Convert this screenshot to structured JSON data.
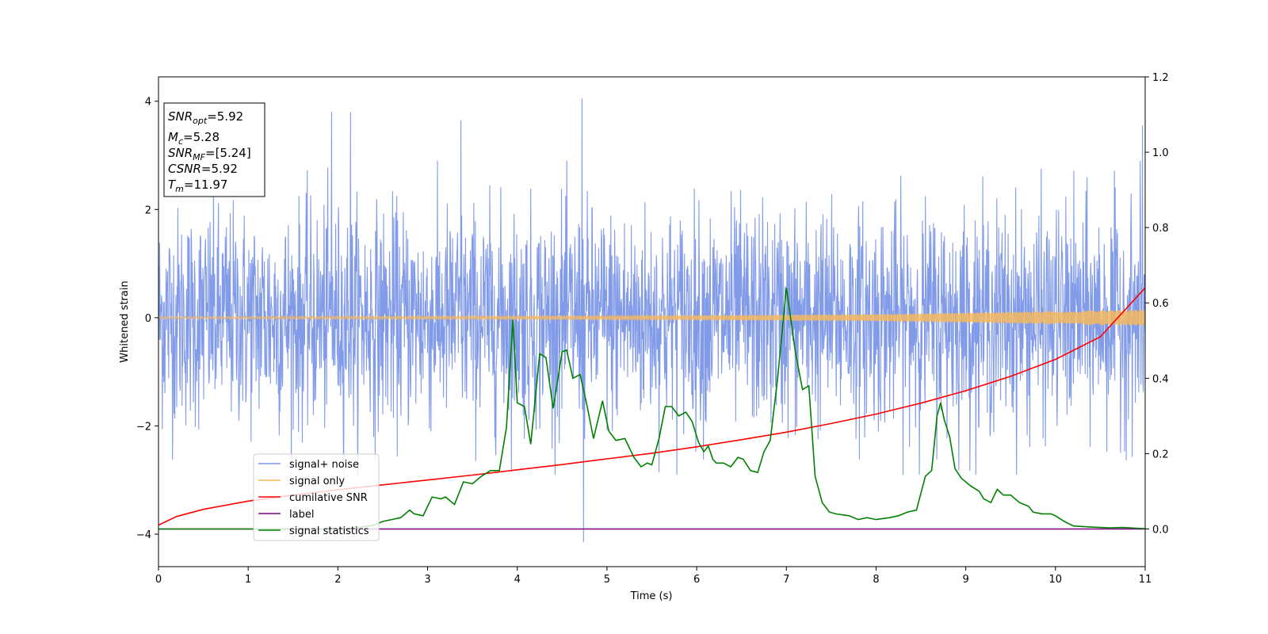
{
  "chart_data": {
    "type": "line",
    "xlabel": "Time (s)",
    "ylabel": "Whitened strain",
    "xlim": [
      0,
      11
    ],
    "ylim": [
      -4.6,
      4.45
    ],
    "y2lim": [
      -0.1,
      1.2
    ],
    "x_ticks": [
      "0",
      "1",
      "2",
      "3",
      "4",
      "5",
      "6",
      "7",
      "8",
      "9",
      "10",
      "11"
    ],
    "y_ticks": [
      "−4",
      "−2",
      "0",
      "2",
      "4"
    ],
    "y2_ticks": [
      "0.0",
      "0.2",
      "0.4",
      "0.6",
      "0.8",
      "1.0",
      "1.2"
    ],
    "annotation": {
      "snr_opt": "5.92",
      "mc": "5.28",
      "snr_mf": "[5.24]",
      "csnr": "5.92",
      "tm": "11.97"
    },
    "legend": {
      "position": "lower left",
      "entries": [
        "signal+ noise",
        "signal only",
        "cumilative SNR",
        "label",
        "signal statistics"
      ]
    },
    "series": [
      {
        "name": "signal+ noise",
        "color": "#7b96e8",
        "axis": "left",
        "style": "noise band approx. −2 to 2 with spikes up to ±4",
        "peaks": [
          {
            "x": 1.93,
            "y": 3.8
          },
          {
            "x": 2.14,
            "y": 3.8
          },
          {
            "x": 3.37,
            "y": 3.65
          },
          {
            "x": 4.72,
            "y": 4.05
          },
          {
            "x": 4.74,
            "y": -4.15
          },
          {
            "x": 10.97,
            "y": 3.55
          }
        ]
      },
      {
        "name": "signal only",
        "color": "#f5b95e",
        "axis": "left",
        "style": "chirp, amplitude growing from ~0.02 to ~0.15",
        "amplitude": [
          {
            "x": 0,
            "y": 0.02
          },
          {
            "x": 5,
            "y": 0.03
          },
          {
            "x": 8,
            "y": 0.06
          },
          {
            "x": 11,
            "y": 0.15
          }
        ]
      },
      {
        "name": "cumilative SNR",
        "color": "#ff0000",
        "axis": "right",
        "points": [
          [
            0,
            0.01
          ],
          [
            0.2,
            0.033
          ],
          [
            0.5,
            0.052
          ],
          [
            1,
            0.074
          ],
          [
            1.5,
            0.09
          ],
          [
            2,
            0.104
          ],
          [
            2.5,
            0.117
          ],
          [
            3,
            0.13
          ],
          [
            3.5,
            0.143
          ],
          [
            4,
            0.157
          ],
          [
            4.5,
            0.171
          ],
          [
            5,
            0.186
          ],
          [
            5.5,
            0.201
          ],
          [
            6,
            0.218
          ],
          [
            6.5,
            0.237
          ],
          [
            7,
            0.257
          ],
          [
            7.5,
            0.28
          ],
          [
            8,
            0.305
          ],
          [
            8.5,
            0.334
          ],
          [
            9,
            0.367
          ],
          [
            9.5,
            0.405
          ],
          [
            10,
            0.45
          ],
          [
            10.5,
            0.51
          ],
          [
            11,
            0.64
          ]
        ]
      },
      {
        "name": "label",
        "color": "#800080",
        "axis": "right",
        "points": [
          [
            0,
            0.0
          ],
          [
            11,
            0.0
          ]
        ]
      },
      {
        "name": "signal statistics",
        "color": "#008000",
        "axis": "right",
        "points": [
          [
            0,
            0.0
          ],
          [
            1.8,
            0.0
          ],
          [
            2.2,
            0.002
          ],
          [
            2.4,
            0.01
          ],
          [
            2.5,
            0.02
          ],
          [
            2.6,
            0.025
          ],
          [
            2.7,
            0.03
          ],
          [
            2.8,
            0.05
          ],
          [
            2.85,
            0.04
          ],
          [
            2.95,
            0.035
          ],
          [
            3.05,
            0.085
          ],
          [
            3.15,
            0.08
          ],
          [
            3.2,
            0.085
          ],
          [
            3.3,
            0.065
          ],
          [
            3.4,
            0.125
          ],
          [
            3.5,
            0.12
          ],
          [
            3.6,
            0.14
          ],
          [
            3.7,
            0.155
          ],
          [
            3.8,
            0.155
          ],
          [
            3.88,
            0.27
          ],
          [
            3.95,
            0.555
          ],
          [
            4.0,
            0.335
          ],
          [
            4.08,
            0.325
          ],
          [
            4.15,
            0.225
          ],
          [
            4.25,
            0.465
          ],
          [
            4.32,
            0.455
          ],
          [
            4.4,
            0.32
          ],
          [
            4.5,
            0.47
          ],
          [
            4.55,
            0.475
          ],
          [
            4.62,
            0.4
          ],
          [
            4.7,
            0.41
          ],
          [
            4.78,
            0.325
          ],
          [
            4.85,
            0.24
          ],
          [
            4.95,
            0.34
          ],
          [
            5.02,
            0.26
          ],
          [
            5.1,
            0.235
          ],
          [
            5.2,
            0.24
          ],
          [
            5.3,
            0.19
          ],
          [
            5.38,
            0.165
          ],
          [
            5.45,
            0.175
          ],
          [
            5.5,
            0.17
          ],
          [
            5.58,
            0.24
          ],
          [
            5.65,
            0.325
          ],
          [
            5.72,
            0.325
          ],
          [
            5.8,
            0.3
          ],
          [
            5.88,
            0.31
          ],
          [
            5.95,
            0.285
          ],
          [
            6.02,
            0.23
          ],
          [
            6.08,
            0.205
          ],
          [
            6.13,
            0.22
          ],
          [
            6.18,
            0.185
          ],
          [
            6.22,
            0.175
          ],
          [
            6.3,
            0.175
          ],
          [
            6.38,
            0.165
          ],
          [
            6.46,
            0.19
          ],
          [
            6.52,
            0.185
          ],
          [
            6.6,
            0.155
          ],
          [
            6.68,
            0.15
          ],
          [
            6.75,
            0.205
          ],
          [
            6.82,
            0.235
          ],
          [
            6.9,
            0.395
          ],
          [
            7.0,
            0.64
          ],
          [
            7.1,
            0.47
          ],
          [
            7.18,
            0.37
          ],
          [
            7.25,
            0.38
          ],
          [
            7.32,
            0.14
          ],
          [
            7.4,
            0.07
          ],
          [
            7.48,
            0.045
          ],
          [
            7.55,
            0.04
          ],
          [
            7.7,
            0.035
          ],
          [
            7.8,
            0.025
          ],
          [
            7.9,
            0.03
          ],
          [
            8.0,
            0.025
          ],
          [
            8.15,
            0.03
          ],
          [
            8.25,
            0.035
          ],
          [
            8.35,
            0.045
          ],
          [
            8.45,
            0.05
          ],
          [
            8.55,
            0.14
          ],
          [
            8.62,
            0.155
          ],
          [
            8.68,
            0.3
          ],
          [
            8.72,
            0.335
          ],
          [
            8.76,
            0.29
          ],
          [
            8.82,
            0.245
          ],
          [
            8.88,
            0.16
          ],
          [
            8.95,
            0.135
          ],
          [
            9.05,
            0.115
          ],
          [
            9.15,
            0.1
          ],
          [
            9.2,
            0.08
          ],
          [
            9.28,
            0.07
          ],
          [
            9.35,
            0.105
          ],
          [
            9.42,
            0.09
          ],
          [
            9.5,
            0.09
          ],
          [
            9.6,
            0.07
          ],
          [
            9.7,
            0.06
          ],
          [
            9.75,
            0.045
          ],
          [
            9.85,
            0.04
          ],
          [
            9.95,
            0.04
          ],
          [
            10.0,
            0.035
          ],
          [
            10.1,
            0.02
          ],
          [
            10.2,
            0.008
          ],
          [
            10.4,
            0.005
          ],
          [
            10.6,
            0.003
          ],
          [
            10.75,
            0.004
          ],
          [
            10.9,
            0.002
          ],
          [
            11,
            0.001
          ]
        ]
      }
    ]
  }
}
